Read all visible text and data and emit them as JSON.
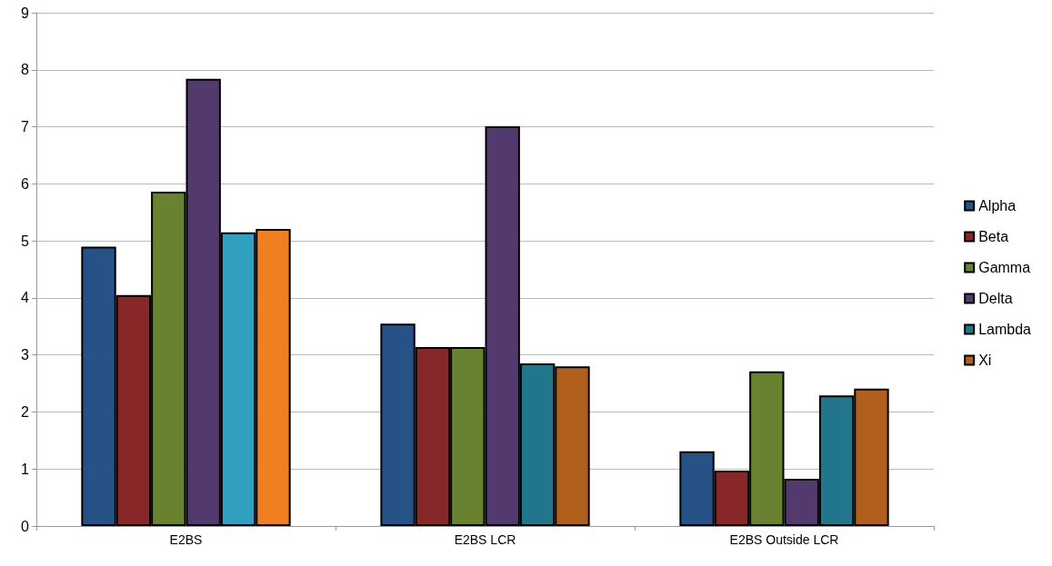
{
  "chart_data": {
    "type": "bar",
    "categories": [
      "E2BS",
      "E2BS LCR",
      "E2BS Outside LCR"
    ],
    "series": [
      {
        "name": "Alpha",
        "color": "#265287",
        "values": [
          4.9,
          3.55,
          1.31
        ]
      },
      {
        "name": "Beta",
        "color": "#882727",
        "values": [
          4.05,
          3.14,
          0.97
        ]
      },
      {
        "name": "Gamma",
        "color": "#69822f",
        "values": [
          5.86,
          3.14,
          2.71
        ]
      },
      {
        "name": "Delta",
        "color": "#523a6e",
        "values": [
          7.84,
          7.01,
          0.83
        ]
      },
      {
        "name": "Lambda",
        "color": "#22768c",
        "colors": [
          "#31a0c0",
          "#22768c",
          "#22768c"
        ],
        "values": [
          5.15,
          2.85,
          2.29
        ]
      },
      {
        "name": "Xi",
        "color": "#b15f1c",
        "colors": [
          "#f07f22",
          "#b15f1c",
          "#b15f1c"
        ],
        "values": [
          5.21,
          2.8,
          2.41
        ]
      }
    ],
    "ylim": [
      0,
      9
    ],
    "yticks": [
      0,
      1,
      2,
      3,
      4,
      5,
      6,
      7,
      8,
      9
    ],
    "grid": "y",
    "legend": "right"
  }
}
